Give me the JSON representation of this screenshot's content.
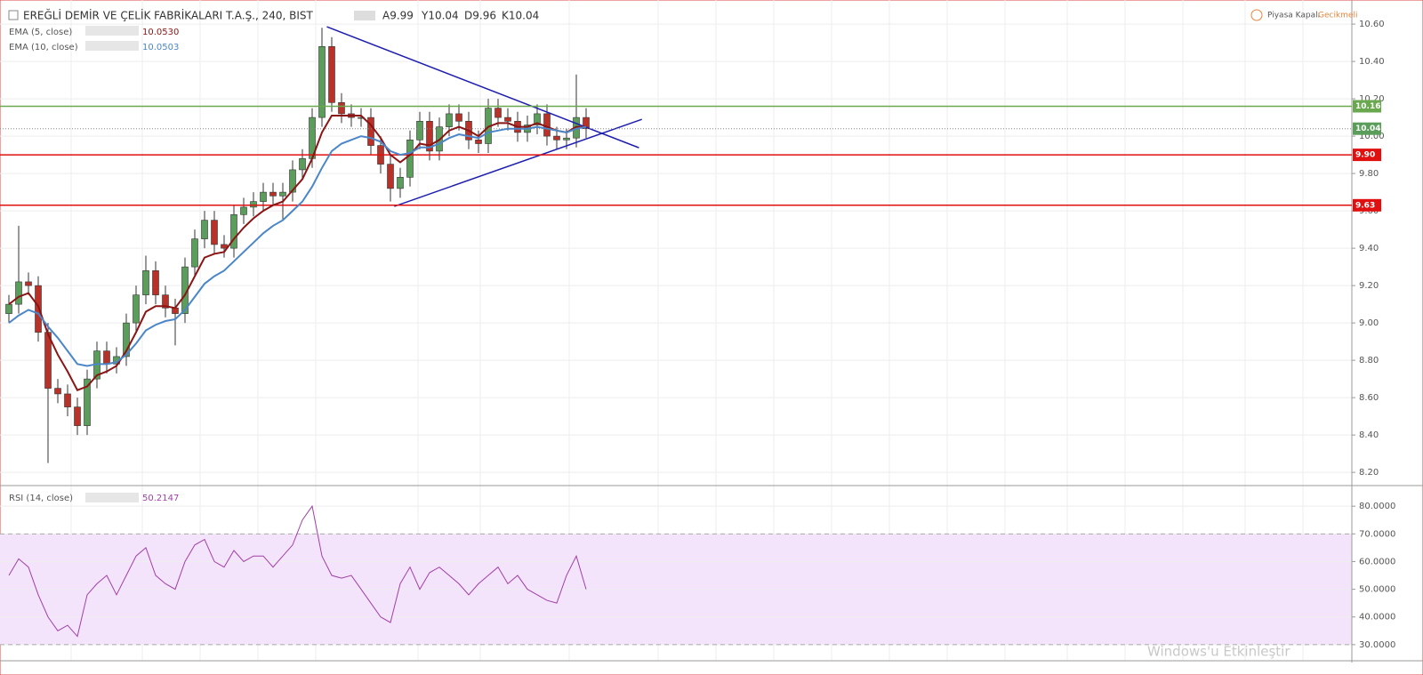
{
  "header": {
    "symbol": "EREĞLİ DEMİR VE ÇELİK FABRİKALARI T.A.Ş., 240, BIST",
    "ohlc": [
      "A9.99",
      "Y10.04",
      "D9.96",
      "K10.04"
    ],
    "status": "Piyasa Kapalı",
    "delay": "Gecikmeli"
  },
  "watermark": "Windows'u Etkinleştir",
  "chart_data": [
    {
      "type": "candlestick",
      "open": [
        9.05,
        9.1,
        9.22,
        9.2,
        8.95,
        8.65,
        8.62,
        8.55,
        8.45,
        8.7,
        8.85,
        8.78,
        8.82,
        9.0,
        9.15,
        9.28,
        9.15,
        9.08,
        9.05,
        9.3,
        9.45,
        9.55,
        9.42,
        9.4,
        9.58,
        9.62,
        9.65,
        9.7,
        9.68,
        9.7,
        9.82,
        9.88,
        10.1,
        10.48,
        10.18,
        10.12,
        10.1,
        10.1,
        9.95,
        9.85,
        9.72,
        9.78,
        9.98,
        10.08,
        9.92,
        10.05,
        10.12,
        10.08,
        9.98,
        9.96,
        10.15,
        10.1,
        10.08,
        10.02,
        10.06,
        10.12,
        10.0,
        9.98,
        9.99,
        10.1
      ],
      "high": [
        9.15,
        9.52,
        9.27,
        9.25,
        9.0,
        8.7,
        8.67,
        8.6,
        8.75,
        8.9,
        8.9,
        8.87,
        9.05,
        9.2,
        9.36,
        9.33,
        9.2,
        9.13,
        9.35,
        9.5,
        9.6,
        9.6,
        9.47,
        9.63,
        9.67,
        9.7,
        9.75,
        9.75,
        9.75,
        9.87,
        9.93,
        10.15,
        10.58,
        10.53,
        10.23,
        10.17,
        10.15,
        10.15,
        10.0,
        9.9,
        9.83,
        10.03,
        10.13,
        10.13,
        10.1,
        10.17,
        10.17,
        10.13,
        10.03,
        10.2,
        10.2,
        10.15,
        10.13,
        10.11,
        10.17,
        10.17,
        10.05,
        10.04,
        10.33,
        10.15
      ],
      "low": [
        9.0,
        9.05,
        9.15,
        8.9,
        8.25,
        8.57,
        8.5,
        8.4,
        8.4,
        8.65,
        8.73,
        8.73,
        8.77,
        8.95,
        9.1,
        9.1,
        9.03,
        8.88,
        9.0,
        9.25,
        9.4,
        9.37,
        9.35,
        9.35,
        9.53,
        9.57,
        9.6,
        9.63,
        9.55,
        9.65,
        9.77,
        9.83,
        10.05,
        10.13,
        10.07,
        10.05,
        10.05,
        9.9,
        9.8,
        9.65,
        9.67,
        9.73,
        9.93,
        9.87,
        9.87,
        10.0,
        10.03,
        9.93,
        9.91,
        9.91,
        10.05,
        10.03,
        9.97,
        9.97,
        10.01,
        9.95,
        9.93,
        9.93,
        9.94,
        9.99
      ],
      "close": [
        9.1,
        9.22,
        9.2,
        8.95,
        8.65,
        8.62,
        8.55,
        8.45,
        8.7,
        8.85,
        8.78,
        8.82,
        9.0,
        9.15,
        9.28,
        9.15,
        9.08,
        9.05,
        9.3,
        9.45,
        9.55,
        9.42,
        9.4,
        9.58,
        9.62,
        9.65,
        9.7,
        9.68,
        9.7,
        9.82,
        9.88,
        10.1,
        10.48,
        10.18,
        10.12,
        10.1,
        10.1,
        9.95,
        9.85,
        9.72,
        9.78,
        9.98,
        10.08,
        9.92,
        10.05,
        10.12,
        10.08,
        9.98,
        9.96,
        10.15,
        10.1,
        10.08,
        10.02,
        10.06,
        10.12,
        10.0,
        9.98,
        9.99,
        10.1,
        10.04
      ],
      "up_color": "#5b9e5b",
      "down_color": "#b8322a",
      "series": [
        {
          "name": "EMA (5, close)",
          "color": "#8b1414",
          "value_label": "10.0530",
          "values": [
            9.1,
            9.14,
            9.16,
            9.09,
            8.94,
            8.83,
            8.74,
            8.64,
            8.66,
            8.72,
            8.74,
            8.77,
            8.85,
            8.95,
            9.06,
            9.09,
            9.09,
            9.08,
            9.15,
            9.25,
            9.35,
            9.37,
            9.38,
            9.45,
            9.51,
            9.56,
            9.6,
            9.63,
            9.65,
            9.71,
            9.77,
            9.88,
            10.02,
            10.11,
            10.11,
            10.11,
            10.11,
            10.06,
            9.99,
            9.9,
            9.86,
            9.9,
            9.96,
            9.95,
            9.98,
            10.03,
            10.05,
            10.03,
            10.0,
            10.05,
            10.07,
            10.07,
            10.05,
            10.05,
            10.07,
            10.05,
            10.03,
            10.02,
            10.05,
            10.05
          ]
        },
        {
          "name": "EMA (10, close)",
          "color": "#4a86c8",
          "value_label": "10.0503",
          "values": [
            9.0,
            9.04,
            9.07,
            9.05,
            8.98,
            8.92,
            8.85,
            8.78,
            8.77,
            8.78,
            8.78,
            8.79,
            8.83,
            8.89,
            8.96,
            8.99,
            9.01,
            9.02,
            9.07,
            9.14,
            9.21,
            9.25,
            9.28,
            9.33,
            9.38,
            9.43,
            9.48,
            9.52,
            9.55,
            9.6,
            9.65,
            9.73,
            9.83,
            9.92,
            9.96,
            9.98,
            10.0,
            9.99,
            9.97,
            9.92,
            9.9,
            9.91,
            9.94,
            9.94,
            9.96,
            9.99,
            10.01,
            10.0,
            9.99,
            10.02,
            10.03,
            10.04,
            10.04,
            10.04,
            10.05,
            10.04,
            10.03,
            10.02,
            10.04,
            10.05
          ]
        }
      ],
      "hlines": [
        {
          "value": 10.16,
          "label": "10.16",
          "color": "#6aa84f"
        },
        {
          "value": 10.04,
          "label": "10.04",
          "color": "#5b9e5b",
          "style": "dotted"
        },
        {
          "value": 9.9,
          "label": "9.90",
          "color": "#e01010"
        },
        {
          "value": 9.63,
          "label": "9.63",
          "color": "#e01010"
        }
      ],
      "trendlines": [
        {
          "x": [
            32.5,
            64.4
          ],
          "y": [
            10.586,
            9.938
          ]
        },
        {
          "x": [
            39.4,
            64.7
          ],
          "y": [
            9.624,
            10.09
          ]
        }
      ],
      "trend_color": "#1e1eb0",
      "ylim": [
        8.134,
        10.729
      ],
      "yticks": [
        {
          "value": 8.2,
          "label": "8.20"
        },
        {
          "value": 8.4,
          "label": "8.40"
        },
        {
          "value": 8.6,
          "label": "8.60"
        },
        {
          "value": 8.8,
          "label": "8.80"
        },
        {
          "value": 9.0,
          "label": "9.00"
        },
        {
          "value": 9.2,
          "label": "9.20"
        },
        {
          "value": 9.4,
          "label": "9.40"
        },
        {
          "value": 9.6,
          "label": "9.60"
        },
        {
          "value": 9.8,
          "label": "9.80"
        },
        {
          "value": 10.0,
          "label": "10.00"
        },
        {
          "value": 10.2,
          "label": "10.20"
        },
        {
          "value": 10.4,
          "label": "10.40"
        },
        {
          "value": 10.6,
          "label": "10.60"
        }
      ],
      "grid": true
    },
    {
      "type": "line",
      "series": [
        {
          "name": "RSI (14, close)",
          "color": "#a040a8",
          "value_label": "50.2147",
          "values": [
            55,
            61,
            58,
            48,
            40,
            35,
            37,
            33,
            48,
            52,
            55,
            48,
            55,
            62,
            65,
            55,
            52,
            50,
            60,
            66,
            68,
            60,
            58,
            64,
            60,
            62,
            62,
            58,
            62,
            66,
            75,
            80,
            62,
            55,
            54,
            55,
            50,
            45,
            40,
            38,
            52,
            58,
            50,
            56,
            58,
            55,
            52,
            48,
            52,
            55,
            58,
            52,
            55,
            50,
            48,
            46,
            45,
            55,
            62,
            50
          ]
        }
      ],
      "band": [
        30,
        70
      ],
      "band_color": "#f3e3fb",
      "ylim": [
        24.5,
        86.8
      ],
      "yticks": [
        {
          "value": 30,
          "label": "30.0000"
        },
        {
          "value": 40,
          "label": "40.0000"
        },
        {
          "value": 50,
          "label": "50.0000"
        },
        {
          "value": 60,
          "label": "60.0000"
        },
        {
          "value": 70,
          "label": "70.0000"
        },
        {
          "value": 80,
          "label": "80.0000"
        }
      ],
      "grid": true
    }
  ]
}
